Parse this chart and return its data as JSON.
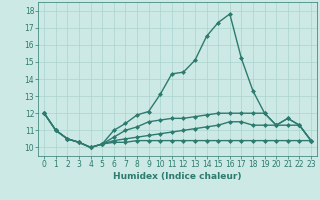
{
  "line1": {
    "x": [
      0,
      1,
      2,
      3,
      4,
      5,
      6,
      7,
      8,
      9,
      10,
      11,
      12,
      13,
      14,
      15,
      16,
      17,
      18,
      19,
      20,
      21,
      22,
      23
    ],
    "y": [
      12,
      11,
      10.5,
      10.3,
      10.0,
      10.2,
      11.0,
      11.4,
      11.9,
      12.1,
      13.1,
      14.3,
      14.4,
      15.1,
      16.5,
      17.3,
      17.8,
      15.2,
      13.3,
      12.0,
      11.3,
      11.7,
      11.3,
      10.4
    ]
  },
  "line2": {
    "x": [
      0,
      1,
      2,
      3,
      4,
      5,
      6,
      7,
      8,
      9,
      10,
      11,
      12,
      13,
      14,
      15,
      16,
      17,
      18,
      19,
      20,
      21,
      22,
      23
    ],
    "y": [
      12,
      11,
      10.5,
      10.3,
      10.0,
      10.2,
      10.6,
      11.0,
      11.2,
      11.5,
      11.6,
      11.7,
      11.7,
      11.8,
      11.9,
      12.0,
      12.0,
      12.0,
      12.0,
      12.0,
      11.3,
      11.7,
      11.3,
      10.4
    ]
  },
  "line3": {
    "x": [
      0,
      1,
      2,
      3,
      4,
      5,
      6,
      7,
      8,
      9,
      10,
      11,
      12,
      13,
      14,
      15,
      16,
      17,
      18,
      19,
      20,
      21,
      22,
      23
    ],
    "y": [
      12,
      11,
      10.5,
      10.3,
      10.0,
      10.2,
      10.4,
      10.5,
      10.6,
      10.7,
      10.8,
      10.9,
      11.0,
      11.1,
      11.2,
      11.3,
      11.5,
      11.5,
      11.3,
      11.3,
      11.3,
      11.3,
      11.3,
      10.4
    ]
  },
  "line4": {
    "x": [
      0,
      1,
      2,
      3,
      4,
      5,
      6,
      7,
      8,
      9,
      10,
      11,
      12,
      13,
      14,
      15,
      16,
      17,
      18,
      19,
      20,
      21,
      22,
      23
    ],
    "y": [
      12,
      11,
      10.5,
      10.3,
      10.0,
      10.2,
      10.3,
      10.3,
      10.4,
      10.4,
      10.4,
      10.4,
      10.4,
      10.4,
      10.4,
      10.4,
      10.4,
      10.4,
      10.4,
      10.4,
      10.4,
      10.4,
      10.4,
      10.4
    ]
  },
  "line_color": "#2d7a6e",
  "background_color": "#cce9e5",
  "grid_color": "#aad4cf",
  "xlabel": "Humidex (Indice chaleur)",
  "xlim": [
    -0.5,
    23.5
  ],
  "ylim": [
    9.5,
    18.5
  ],
  "yticks": [
    10,
    11,
    12,
    13,
    14,
    15,
    16,
    17,
    18
  ],
  "xticks": [
    0,
    1,
    2,
    3,
    4,
    5,
    6,
    7,
    8,
    9,
    10,
    11,
    12,
    13,
    14,
    15,
    16,
    17,
    18,
    19,
    20,
    21,
    22,
    23
  ],
  "marker": "D",
  "markersize": 2.0,
  "linewidth": 1.0
}
